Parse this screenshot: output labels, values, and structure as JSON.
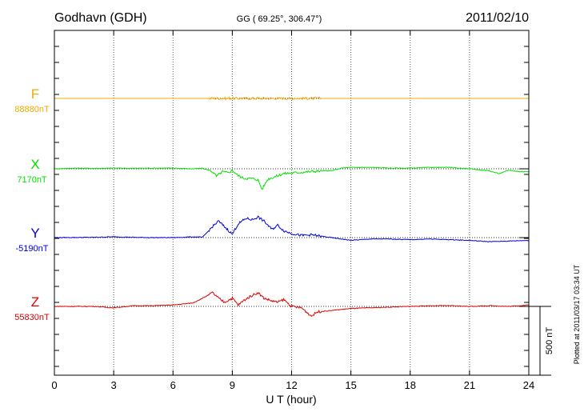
{
  "header": {
    "station": "Godhavn (GDH)",
    "coords": "GG ( 69.25°, 306.47°)",
    "date": "2011/02/10"
  },
  "footer": {
    "plotted": "Plotted at 2011/03/17 03:34 UT",
    "scale_label": "500 nT"
  },
  "chart_data": {
    "type": "line",
    "xlabel": "U T (hour)",
    "xlim": [
      0,
      24
    ],
    "x_ticks": [
      "0",
      "3",
      "6",
      "9",
      "12",
      "15",
      "18",
      "21",
      "24"
    ],
    "scale_bar_nT": 500,
    "series": [
      {
        "name": "F",
        "baseline_label": "88880nT",
        "color": "#f5a800",
        "offset_nT": 0,
        "x": [
          0,
          24
        ],
        "y": [
          0,
          0
        ]
      },
      {
        "name": "X",
        "baseline_label": "7170nT",
        "color": "#00e000",
        "offset_nT": -500,
        "x": [
          0,
          1,
          2,
          3,
          4,
          5,
          6,
          7,
          7.5,
          8,
          8.2,
          8.5,
          8.8,
          9,
          9.3,
          9.6,
          10,
          10.3,
          10.5,
          10.8,
          11.2,
          11.6,
          12,
          12.5,
          13,
          13.5,
          14,
          14.5,
          15,
          16,
          17,
          18,
          19,
          20,
          21,
          22,
          22.5,
          23,
          23.5,
          24
        ],
        "y": [
          0,
          5,
          3,
          5,
          4,
          5,
          5,
          0,
          4,
          -20,
          -55,
          -20,
          -30,
          -10,
          -50,
          -70,
          -70,
          -80,
          -150,
          -75,
          -55,
          -35,
          -30,
          -25,
          -20,
          -15,
          -15,
          5,
          10,
          10,
          5,
          5,
          10,
          10,
          0,
          -15,
          -35,
          -10,
          -20,
          -20
        ]
      },
      {
        "name": "Y",
        "baseline_label": "-5190nT",
        "color": "#0000dd",
        "offset_nT": 0,
        "x": [
          0,
          2,
          3,
          4,
          5,
          6,
          7,
          7.5,
          8,
          8.3,
          8.6,
          9,
          9.3,
          9.7,
          10,
          10.3,
          10.6,
          11,
          11.3,
          11.6,
          12,
          12.5,
          13,
          14,
          15,
          16,
          17,
          18,
          19,
          20,
          21,
          22,
          23,
          24
        ],
        "y": [
          0,
          2,
          6,
          2,
          0,
          0,
          5,
          3,
          80,
          120,
          80,
          25,
          100,
          140,
          130,
          150,
          120,
          60,
          90,
          50,
          30,
          15,
          20,
          0,
          -20,
          -10,
          -10,
          -15,
          -10,
          -15,
          -20,
          -30,
          -25,
          -20
        ]
      },
      {
        "name": "Z",
        "baseline_label": "55830nT",
        "color": "#e00000",
        "offset_nT": 0,
        "x": [
          0,
          2,
          3,
          4,
          5,
          6,
          7,
          7.5,
          8,
          8.3,
          8.6,
          9,
          9.3,
          9.6,
          10,
          10.3,
          10.6,
          11,
          11.3,
          11.6,
          12,
          12.5,
          13,
          13.3,
          14,
          15,
          16,
          17,
          18,
          19,
          20,
          21,
          22,
          23,
          24
        ],
        "y": [
          0,
          0,
          -10,
          5,
          5,
          10,
          25,
          60,
          100,
          60,
          30,
          60,
          10,
          45,
          80,
          100,
          60,
          40,
          30,
          50,
          0,
          -10,
          -70,
          -40,
          -30,
          -15,
          -10,
          -5,
          0,
          5,
          5,
          0,
          5,
          0,
          10
        ]
      }
    ]
  }
}
